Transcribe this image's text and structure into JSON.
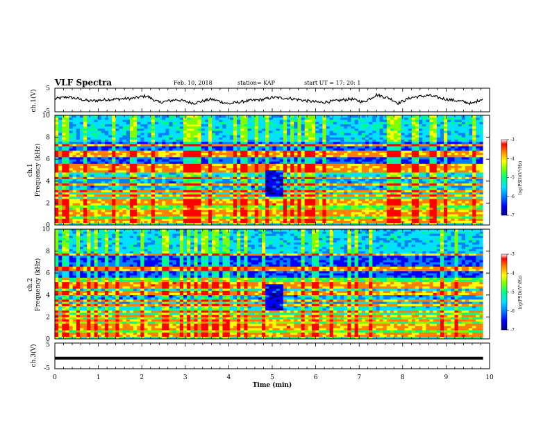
{
  "header": {
    "title": "VLF Spectra",
    "date": "Feb. 10, 2018",
    "station": "station= KAP",
    "start": "start  UT =   17: 20: 1"
  },
  "colors": {
    "colormap": [
      "#000080",
      "#0000ff",
      "#0080ff",
      "#00e0ff",
      "#00ff80",
      "#80ff00",
      "#ffff00",
      "#ff8000",
      "#ff0000",
      "#ffffff"
    ],
    "line": "#000000",
    "frame": "#000000"
  },
  "chart_data": [
    {
      "type": "line",
      "panel": "ch1-waveform",
      "ylabel": "ch.1(V)",
      "ylim": [
        -5,
        5
      ],
      "yticks": [
        "5",
        "-5"
      ],
      "xlim": [
        0,
        10
      ],
      "description_points": {
        "x": [
          0,
          0.3,
          0.8,
          1.2,
          1.8,
          2.1,
          2.4,
          2.8,
          3.2,
          3.6,
          4.0,
          4.4,
          4.8,
          5.0,
          5.4,
          5.8,
          6.1,
          6.4,
          6.8,
          7.1,
          7.4,
          7.7,
          7.9,
          8.2,
          8.6,
          9.0,
          9.4,
          9.6,
          9.85
        ],
        "y": [
          0.5,
          1.5,
          -0.5,
          0.2,
          0.8,
          2.0,
          -1.2,
          0.2,
          -1.5,
          0.4,
          -1.8,
          -0.5,
          0.3,
          1.2,
          0.8,
          -0.4,
          -1.2,
          -0.6,
          0.5,
          -1.0,
          2.5,
          0.8,
          -1.5,
          1.2,
          2.2,
          0.4,
          -0.8,
          -1.8,
          0.8
        ]
      }
    },
    {
      "type": "heatmap",
      "panel": "ch1-spectrogram",
      "ylabel": "ch.1",
      "ylabel2": "Frequency  (kHz)",
      "ylim": [
        0,
        10
      ],
      "yticks": [
        "0",
        "2",
        "4",
        "6",
        "8",
        "10"
      ],
      "xlim": [
        0,
        10
      ],
      "colorbar": {
        "label": "log(PSD)(V²/Hz)",
        "ticks": [
          "-3",
          "-4",
          "-5",
          "-6",
          "-7"
        ],
        "range": [
          -7,
          -3
        ]
      },
      "bands_khz": [
        0.3,
        0.8,
        1.1,
        1.9,
        2.2,
        2.6,
        3.0,
        3.6,
        4.2,
        4.8,
        5.1,
        5.3,
        6.3,
        6.6,
        7.2
      ],
      "data_gap_min": [
        4.8,
        5.2
      ]
    },
    {
      "type": "heatmap",
      "panel": "ch2-spectrogram",
      "ylabel": "ch.2",
      "ylabel2": "Frequency  (kHz)",
      "ylim": [
        0,
        10
      ],
      "yticks": [
        "0",
        "2",
        "4",
        "6",
        "8",
        "10"
      ],
      "xlim": [
        0,
        10
      ],
      "colorbar": {
        "label": "log(PSD)(V²/Hz)",
        "ticks": [
          "-3",
          "-4",
          "-5",
          "-6",
          "-7"
        ],
        "range": [
          -7,
          -3
        ]
      },
      "bands_khz": [
        0.3,
        0.8,
        1.1,
        1.6,
        2.0,
        2.4,
        3.0,
        3.4,
        4.1,
        4.7,
        5.0,
        6.3,
        7.6
      ],
      "data_gap_min": [
        4.8,
        5.2
      ]
    },
    {
      "type": "line",
      "panel": "ch3-waveform",
      "ylabel": "ch.3(V)",
      "ylim": [
        -5,
        5
      ],
      "yticks": [
        "5",
        "-5"
      ],
      "xlim": [
        0,
        10
      ],
      "description_points": {
        "x": [
          0,
          9.85
        ],
        "y": [
          -1,
          -1
        ]
      }
    }
  ],
  "xaxis": {
    "label": "Time  (min)",
    "ticks": [
      "0",
      "1",
      "2",
      "3",
      "4",
      "5",
      "6",
      "7",
      "8",
      "9",
      "10"
    ],
    "data_end_min": 9.85
  }
}
